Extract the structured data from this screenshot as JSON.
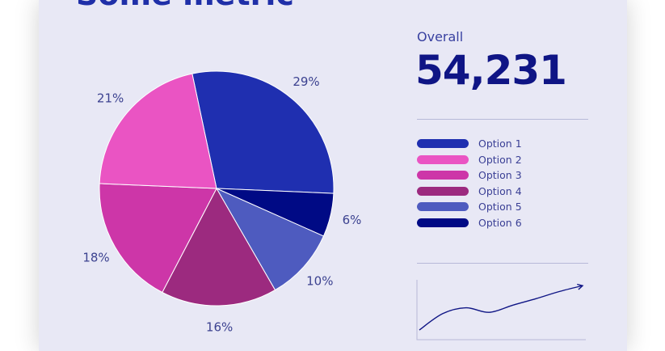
{
  "card": {
    "title": "Some metric",
    "overall_label": "Overall",
    "overall_value": "54,231"
  },
  "colors": {
    "card_bg": "#e8e8f5",
    "title": "#1f2fa8",
    "accent_dark": "#0f1585"
  },
  "chart_data": [
    {
      "type": "pie",
      "title": "Some metric",
      "categories": [
        "Option 1",
        "Option 6",
        "Option 5",
        "Option 4",
        "Option 3",
        "Option 2"
      ],
      "values": [
        29,
        6,
        10,
        16,
        18,
        21
      ],
      "labels": [
        "29%",
        "6%",
        "10%",
        "16%",
        "18%",
        "21%"
      ],
      "colors": [
        "#1f2fb0",
        "#000a85",
        "#4e5bbf",
        "#9c2a7f",
        "#cd36a8",
        "#ea54c3"
      ],
      "legend": {
        "placement": "right",
        "items": [
          {
            "label": "Option 1",
            "color": "#1f2fb0"
          },
          {
            "label": "Option 2",
            "color": "#ea54c3"
          },
          {
            "label": "Option 3",
            "color": "#cd36a8"
          },
          {
            "label": "Option 4",
            "color": "#9c2a7f"
          },
          {
            "label": "Option 5",
            "color": "#4e5bbf"
          },
          {
            "label": "Option 6",
            "color": "#000a85"
          }
        ]
      }
    },
    {
      "type": "line",
      "title": "",
      "xlabel": "",
      "ylabel": "",
      "x": [
        0,
        1,
        2,
        3,
        4,
        5,
        6,
        7
      ],
      "values": [
        1,
        3.5,
        4.4,
        3.7,
        4.8,
        5.8,
        6.9,
        7.8
      ],
      "color": "#0f1585",
      "grid": false,
      "end_arrow": true
    }
  ]
}
